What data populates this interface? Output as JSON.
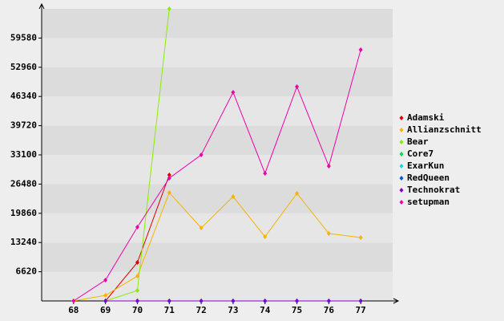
{
  "chart_data": {
    "type": "line",
    "x": [
      68,
      69,
      70,
      71,
      72,
      73,
      74,
      75,
      76,
      77
    ],
    "xlim": [
      67,
      78
    ],
    "xticks": [
      68,
      69,
      70,
      71,
      72,
      73,
      74,
      75,
      76,
      77
    ],
    "ylim": [
      0,
      66200
    ],
    "yticks": [
      6620,
      13240,
      19860,
      26480,
      33100,
      39720,
      46340,
      52960,
      59580
    ],
    "grid": true,
    "legend": "right",
    "series": [
      {
        "name": "Adamski",
        "color": "#dd0000",
        "values": [
          null,
          0,
          8730,
          28550,
          null,
          null,
          null,
          null,
          null,
          null
        ]
      },
      {
        "name": "Allianzschnitt",
        "color": "#f5b400",
        "values": [
          0,
          1270,
          5640,
          24550,
          16550,
          23640,
          14550,
          24370,
          15280,
          14370
        ]
      },
      {
        "name": "Bear",
        "color": "#88ee00",
        "values": [
          null,
          0,
          2360,
          66200,
          null,
          null,
          null,
          null,
          null,
          null
        ]
      },
      {
        "name": "Core7",
        "color": "#00dd55",
        "values": [
          null,
          0,
          0,
          0,
          0,
          0,
          0,
          0,
          0,
          0
        ]
      },
      {
        "name": "ExarKun",
        "color": "#00ddee",
        "values": [
          null,
          0,
          0,
          0,
          0,
          0,
          0,
          0,
          0,
          0
        ]
      },
      {
        "name": "RedQueen",
        "color": "#0055dd",
        "values": [
          null,
          0,
          0,
          0,
          0,
          0,
          0,
          0,
          0,
          0
        ]
      },
      {
        "name": "Technokrat",
        "color": "#8800cc",
        "values": [
          null,
          0,
          0,
          0,
          0,
          0,
          0,
          0,
          0,
          0
        ]
      },
      {
        "name": "setupman",
        "color": "#ee00aa",
        "values": [
          0,
          4730,
          16730,
          27830,
          33100,
          47290,
          28920,
          48560,
          30550,
          56930
        ]
      }
    ]
  }
}
